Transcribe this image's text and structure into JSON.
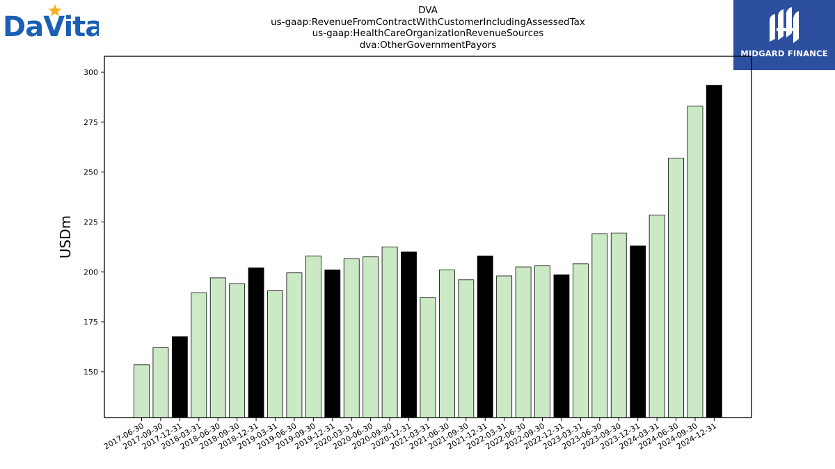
{
  "header": {
    "title_lines": [
      "DVA",
      "us-gaap:RevenueFromContractWithCustomerIncludingAssessedTax",
      "us-gaap:HealthCareOrganizationRevenueSources",
      "dva:OtherGovernmentPayors"
    ]
  },
  "logos": {
    "left_brand": "DaVita",
    "right_brand": "MIDGARD FINANCE"
  },
  "colors": {
    "bar_quarter": "#cce9c6",
    "bar_year_end": "#000000",
    "bar_edge": "#000000",
    "davita_blue": "#1a5fb4",
    "davita_star": "#f5b21b",
    "midgard_bg": "#2d4fa0"
  },
  "chart_data": {
    "type": "bar",
    "ylabel": "USDm",
    "ylim": [
      127,
      308
    ],
    "yticks": [
      150,
      175,
      200,
      225,
      250,
      275,
      300
    ],
    "categories": [
      "2017-06-30",
      "2017-09-30",
      "2017-12-31",
      "2018-03-31",
      "2018-06-30",
      "2018-09-30",
      "2018-12-31",
      "2019-03-31",
      "2019-06-30",
      "2019-09-30",
      "2019-12-31",
      "2020-03-31",
      "2020-06-30",
      "2020-09-30",
      "2020-12-31",
      "2021-03-31",
      "2021-06-30",
      "2021-09-30",
      "2021-12-31",
      "2022-03-31",
      "2022-06-30",
      "2022-09-30",
      "2022-12-31",
      "2023-03-31",
      "2023-06-30",
      "2023-09-30",
      "2023-12-31",
      "2024-03-31",
      "2024-06-30",
      "2024-09-30",
      "2024-12-31"
    ],
    "values": [
      153.5,
      162,
      167.5,
      189.5,
      197,
      194,
      202,
      190.5,
      199.5,
      208,
      201,
      206.5,
      207.5,
      212.5,
      210,
      187,
      201,
      196,
      208,
      198,
      202.5,
      203,
      198.5,
      204,
      219,
      219.5,
      213,
      228.5,
      257,
      283,
      293.5
    ],
    "year_end": [
      false,
      false,
      true,
      false,
      false,
      false,
      true,
      false,
      false,
      false,
      true,
      false,
      false,
      false,
      true,
      false,
      false,
      false,
      true,
      false,
      false,
      false,
      true,
      false,
      false,
      false,
      true,
      false,
      false,
      false,
      true
    ],
    "grid": false,
    "legend": "none"
  }
}
